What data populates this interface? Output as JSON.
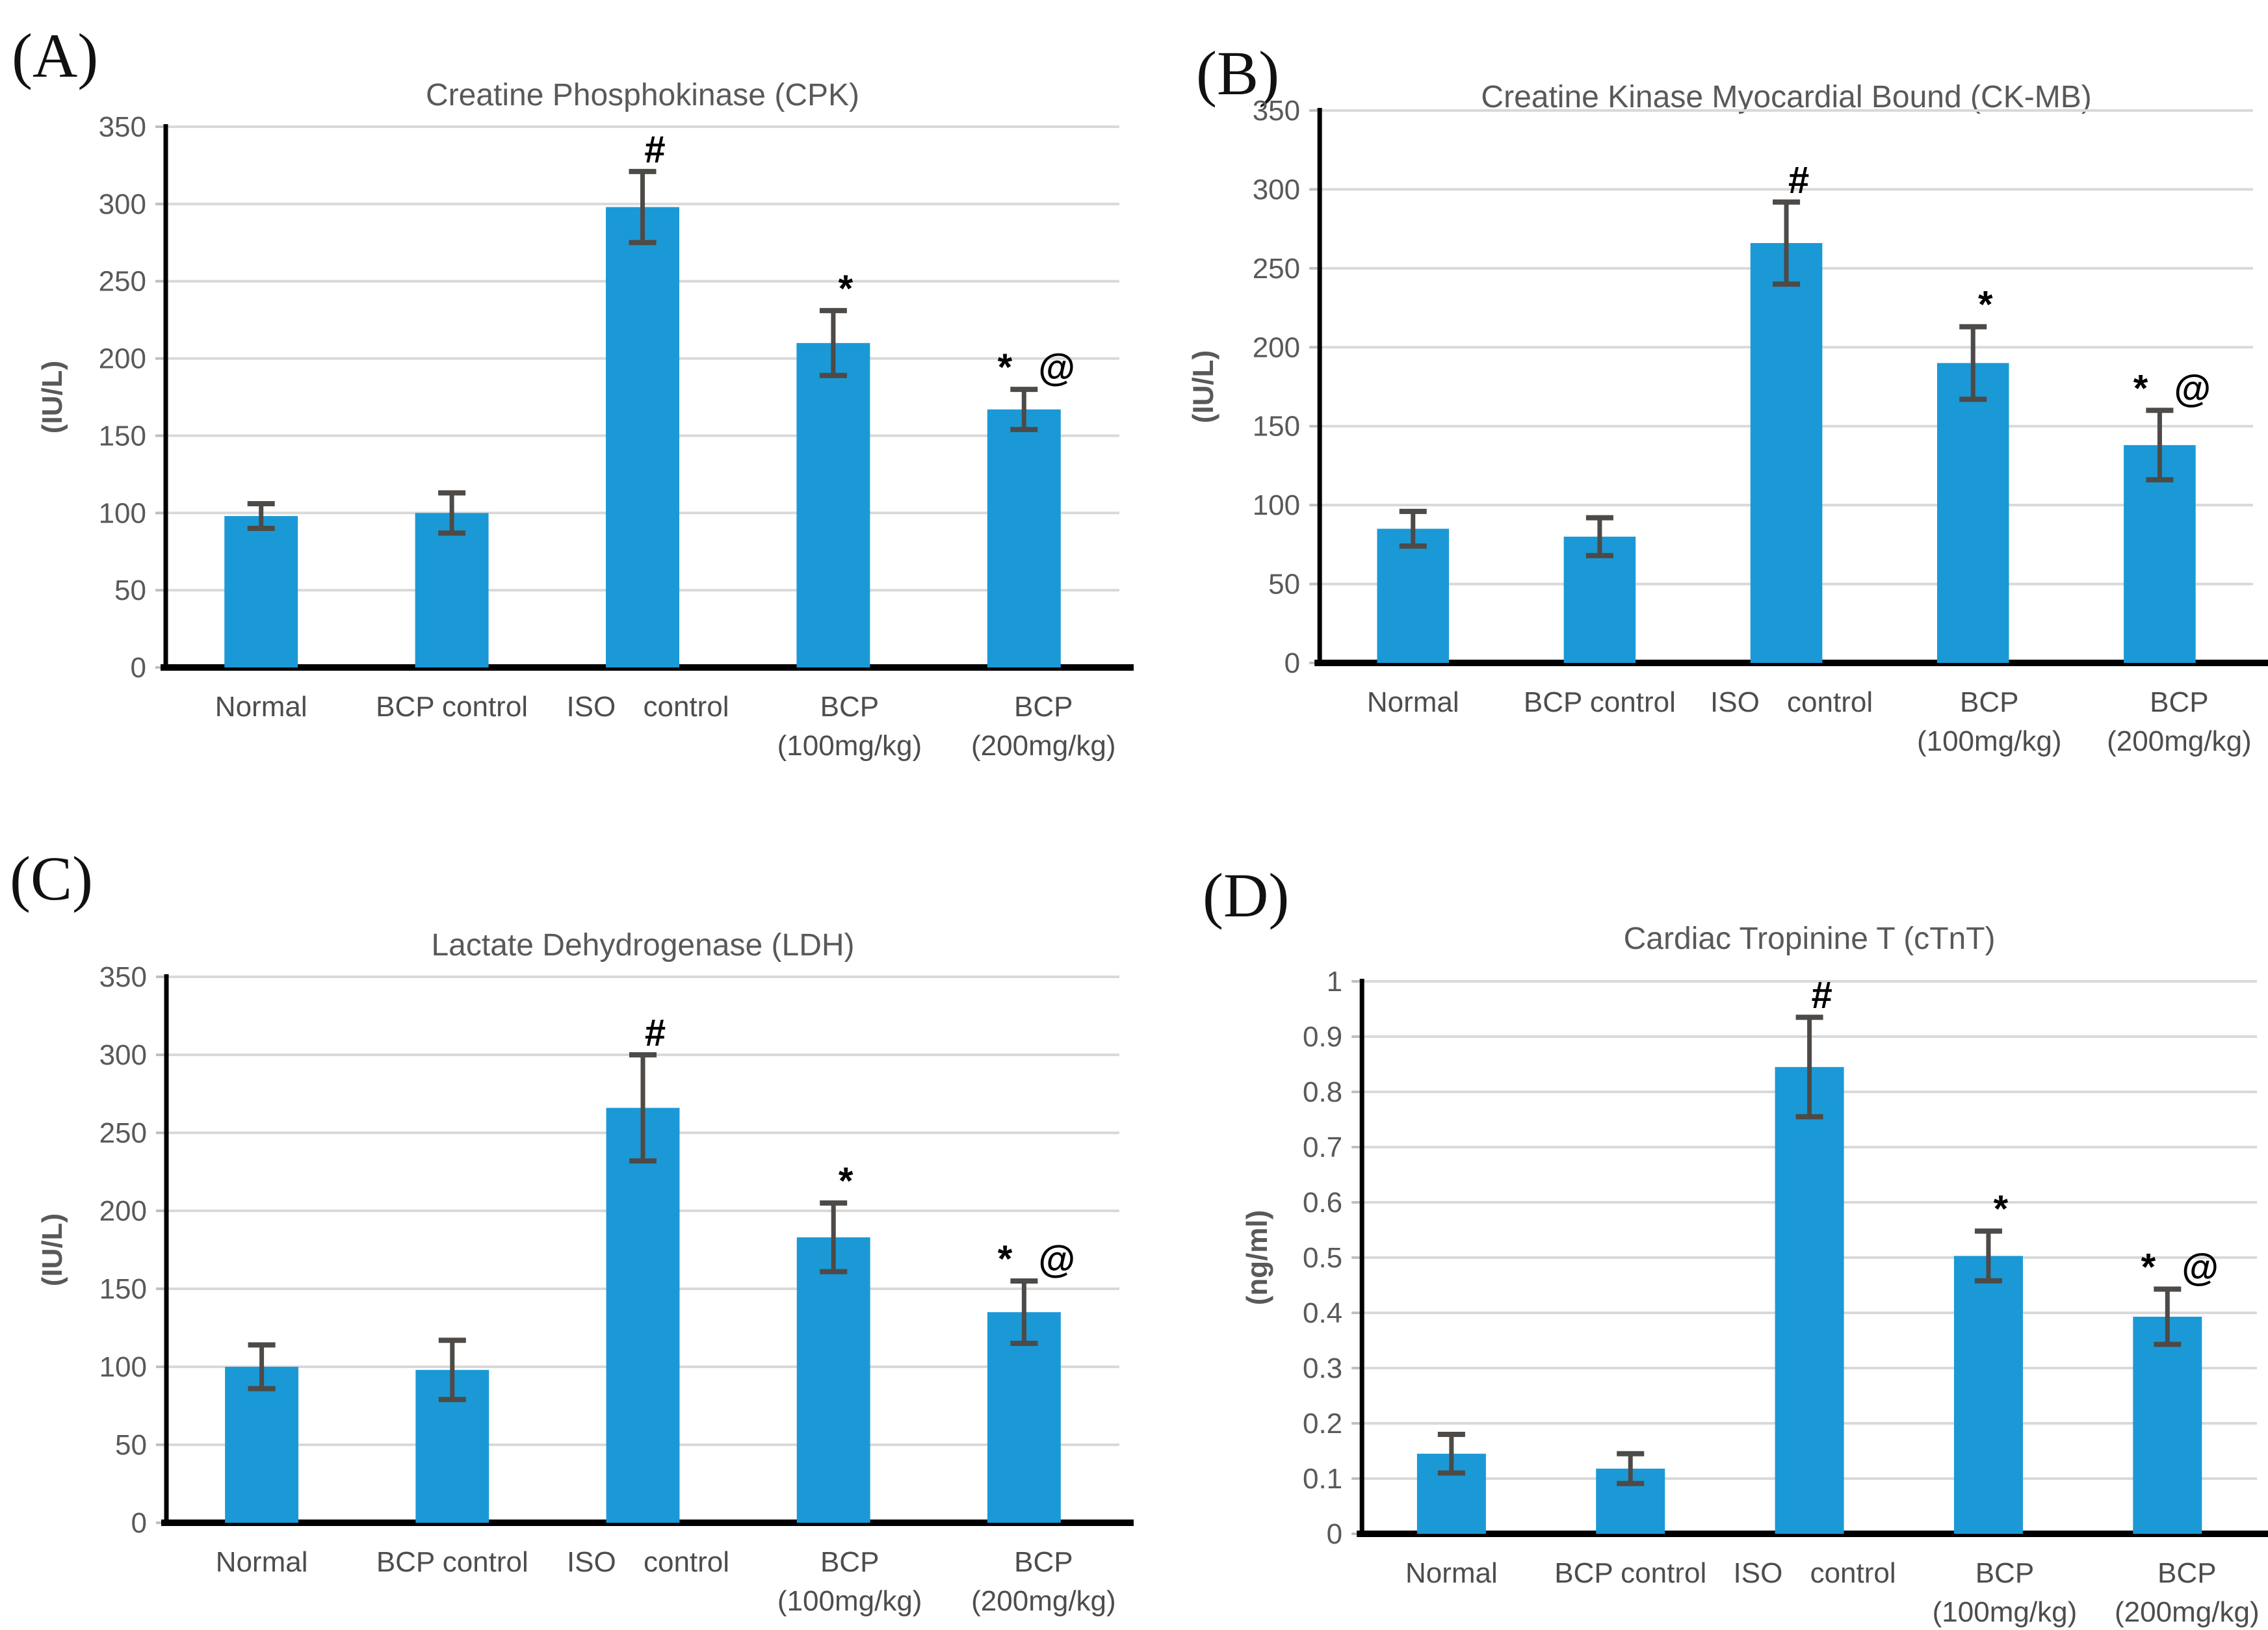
{
  "figure": {
    "background": "#ffffff"
  },
  "colors": {
    "bar_fill": "#1B99D6",
    "gridline": "#D9D9D9",
    "axis": "#000000",
    "tick_stub": "#BFBFBF",
    "error_bar": "#4D4A47",
    "title_text": "#595959",
    "tick_label": "#595959",
    "x_label": "#4D4D4D",
    "y_axis_label": "#595959",
    "panel_letter": "#111111",
    "marker_text": "#000000"
  },
  "chart_data": [
    {
      "type": "bar",
      "panel_letter": "(A)",
      "title": "Creatine Phosphokinase (CPK)",
      "ylabel": "(IU/L)",
      "ylim": [
        0,
        350
      ],
      "ytick_step": 50,
      "grid": true,
      "legend_position": "none",
      "categories": [
        {
          "lines": [
            "Normal"
          ]
        },
        {
          "lines": [
            "BCP control"
          ]
        },
        {
          "lines": [
            "ISO control"
          ],
          "wide_gap": true
        },
        {
          "lines": [
            "BCP",
            "(100mg/kg)"
          ]
        },
        {
          "lines": [
            "BCP",
            "(200mg/kg)"
          ]
        }
      ],
      "values": [
        98,
        100,
        298,
        210,
        167
      ],
      "errors": [
        8,
        13,
        23,
        21,
        13
      ],
      "markers": [
        "",
        "",
        "#",
        "*",
        "* @"
      ]
    },
    {
      "type": "bar",
      "panel_letter": "(B)",
      "title": "Creatine Kinase Myocardial Bound (CK-MB)",
      "ylabel": "(IU/L)",
      "ylim": [
        0,
        350
      ],
      "ytick_step": 50,
      "grid": true,
      "legend_position": "none",
      "categories": [
        {
          "lines": [
            "Normal"
          ]
        },
        {
          "lines": [
            "BCP control"
          ]
        },
        {
          "lines": [
            "ISO control"
          ],
          "wide_gap": true
        },
        {
          "lines": [
            "BCP",
            "(100mg/kg)"
          ]
        },
        {
          "lines": [
            "BCP",
            "(200mg/kg)"
          ]
        }
      ],
      "values": [
        85,
        80,
        266,
        190,
        138
      ],
      "errors": [
        11,
        12,
        26,
        23,
        22
      ],
      "markers": [
        "",
        "",
        "#",
        "*",
        "* @"
      ]
    },
    {
      "type": "bar",
      "panel_letter": "(C)",
      "title": "Lactate Dehydrogenase (LDH)",
      "ylabel": "(IU/L)",
      "ylim": [
        0,
        350
      ],
      "ytick_step": 50,
      "grid": true,
      "legend_position": "none",
      "categories": [
        {
          "lines": [
            "Normal"
          ]
        },
        {
          "lines": [
            "BCP control"
          ]
        },
        {
          "lines": [
            "ISO control"
          ],
          "wide_gap": true
        },
        {
          "lines": [
            "BCP",
            "(100mg/kg)"
          ]
        },
        {
          "lines": [
            "BCP",
            "(200mg/kg)"
          ]
        }
      ],
      "values": [
        100,
        98,
        266,
        183,
        135
      ],
      "errors": [
        14,
        19,
        34,
        22,
        20
      ],
      "markers": [
        "",
        "",
        "#",
        "*",
        "* @"
      ]
    },
    {
      "type": "bar",
      "panel_letter": "(D)",
      "title": "Cardiac Tropinine T (cTnT)",
      "ylabel": "(ng/ml)",
      "ylim": [
        0,
        1
      ],
      "ytick_step": 0.1,
      "grid": true,
      "legend_position": "none",
      "categories": [
        {
          "lines": [
            "Normal"
          ]
        },
        {
          "lines": [
            "BCP control"
          ]
        },
        {
          "lines": [
            "ISO control"
          ],
          "wide_gap": true
        },
        {
          "lines": [
            "BCP",
            "(100mg/kg)"
          ]
        },
        {
          "lines": [
            "BCP",
            "(200mg/kg)"
          ]
        }
      ],
      "values": [
        0.145,
        0.118,
        0.845,
        0.503,
        0.393
      ],
      "errors": [
        0.035,
        0.027,
        0.09,
        0.045,
        0.05
      ],
      "markers": [
        "",
        "",
        "#",
        "*",
        "* @"
      ]
    }
  ]
}
